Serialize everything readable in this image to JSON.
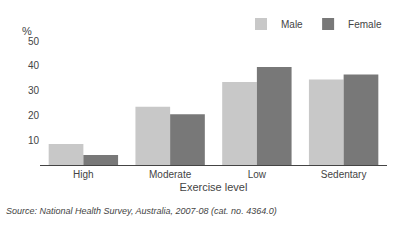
{
  "chart_data": {
    "type": "bar",
    "categories": [
      "High",
      "Moderate",
      "Low",
      "Sedentary"
    ],
    "series": [
      {
        "name": "Male",
        "color": "#c8c8c8",
        "values": [
          8.5,
          23.5,
          33.5,
          34.5
        ]
      },
      {
        "name": "Female",
        "color": "#787878",
        "values": [
          4.0,
          20.5,
          39.5,
          36.5
        ]
      }
    ],
    "xlabel": "Exercise level",
    "ylabel": "%",
    "ylim": [
      0,
      50
    ],
    "yticks": [
      10,
      20,
      30,
      40,
      50
    ],
    "grid": false,
    "legend": "upper right",
    "annotations": [
      "Source: National Health Survey, Australia, 2007-08 (cat. no. 4364.0)"
    ]
  }
}
